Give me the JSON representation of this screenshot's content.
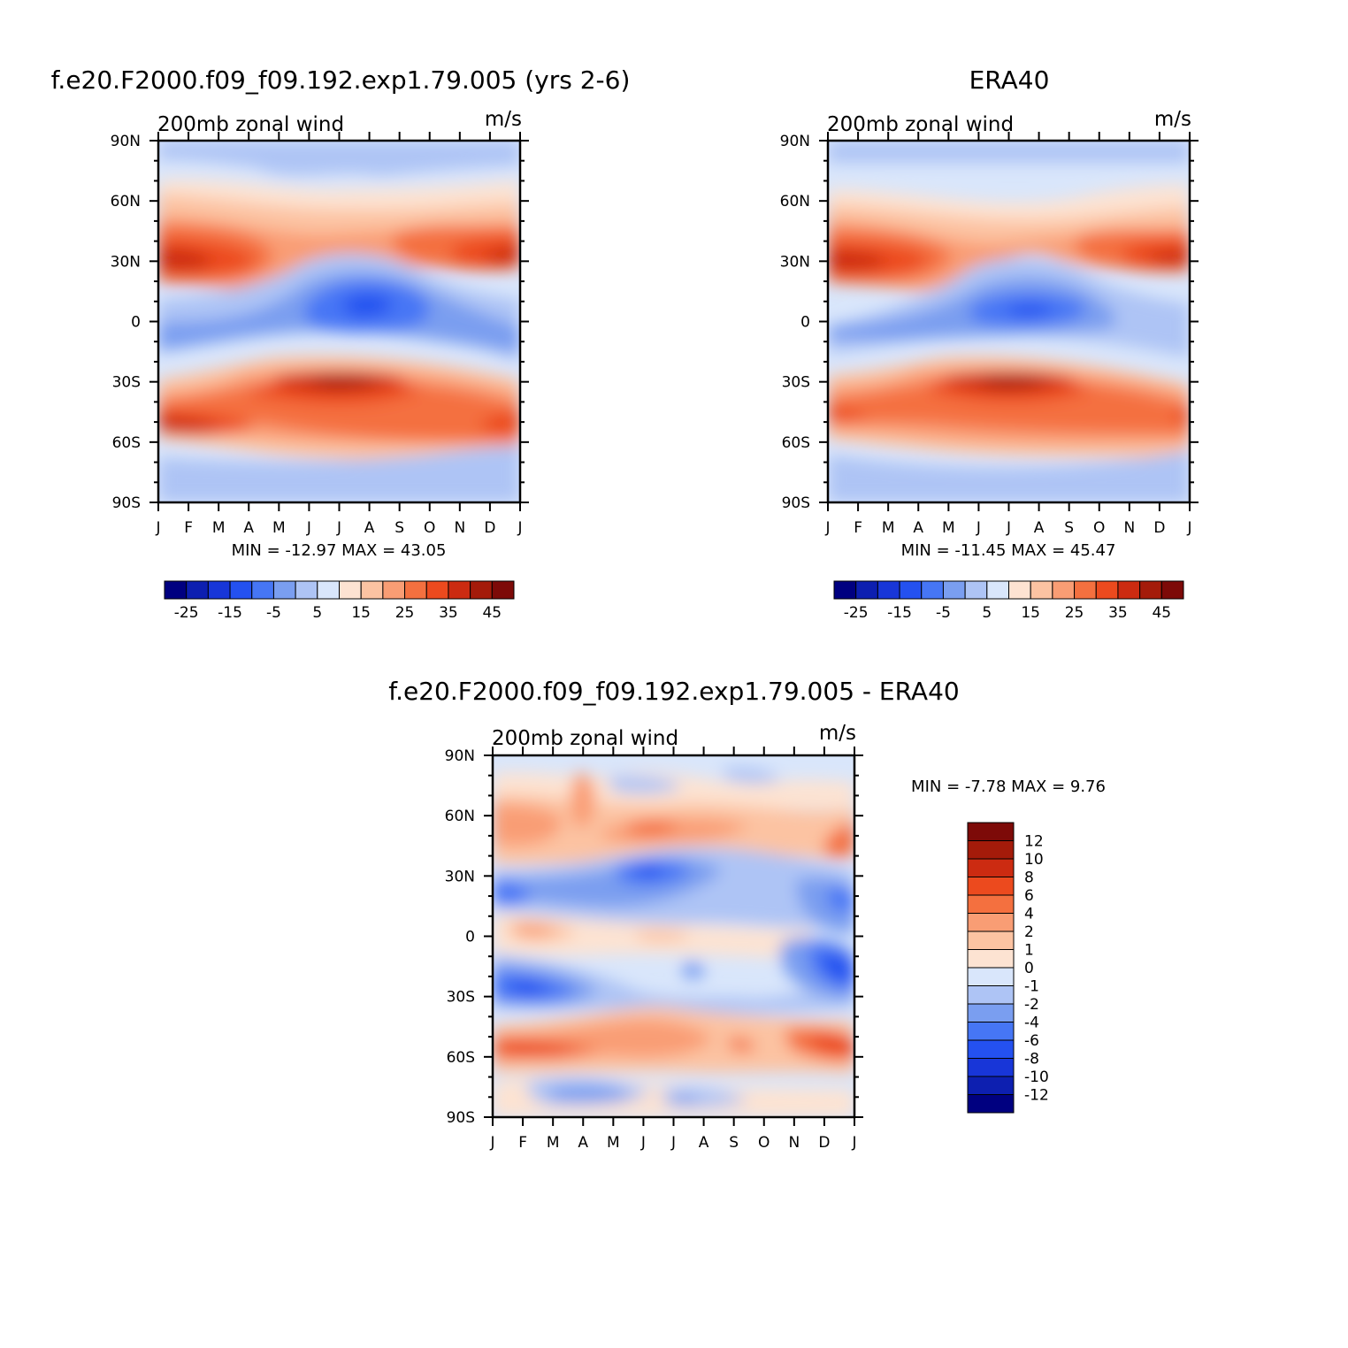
{
  "chart_data": [
    {
      "type": "heatmap",
      "title": "f.e20.F2000.f09_f09.192.exp1.79.005 (yrs 2-6)",
      "left_string": "200mb  zonal  wind",
      "right_string": "m/s",
      "x_tick_labels": [
        "J",
        "F",
        "M",
        "A",
        "M",
        "J",
        "J",
        "A",
        "S",
        "O",
        "N",
        "D",
        "J"
      ],
      "y_tick_labels": [
        "90N",
        "60N",
        "30N",
        "0",
        "30S",
        "60S",
        "90S"
      ],
      "y_values": [
        90,
        60,
        30,
        0,
        -30,
        -60,
        -90
      ],
      "stats_text": "MIN =  -12.97  MAX =    43.05",
      "min": -12.97,
      "max": 43.05,
      "colorbar": {
        "orientation": "horizontal",
        "labels": [
          "-25",
          "-15",
          "-5",
          "5",
          "15",
          "25",
          "35",
          "45"
        ]
      }
    },
    {
      "type": "heatmap",
      "title": "ERA40",
      "left_string": "200mb  zonal  wind",
      "right_string": "m/s",
      "x_tick_labels": [
        "J",
        "F",
        "M",
        "A",
        "M",
        "J",
        "J",
        "A",
        "S",
        "O",
        "N",
        "D",
        "J"
      ],
      "y_tick_labels": [
        "90N",
        "60N",
        "30N",
        "0",
        "30S",
        "60S",
        "90S"
      ],
      "y_values": [
        90,
        60,
        30,
        0,
        -30,
        -60,
        -90
      ],
      "stats_text": "MIN =  -11.45  MAX =    45.47",
      "min": -11.45,
      "max": 45.47,
      "colorbar": {
        "orientation": "horizontal",
        "labels": [
          "-25",
          "-15",
          "-5",
          "5",
          "15",
          "25",
          "35",
          "45"
        ]
      }
    },
    {
      "type": "heatmap",
      "title": "f.e20.F2000.f09_f09.192.exp1.79.005 - ERA40",
      "left_string": "200mb  zonal  wind",
      "right_string": "m/s",
      "x_tick_labels": [
        "J",
        "F",
        "M",
        "A",
        "M",
        "J",
        "J",
        "A",
        "S",
        "O",
        "N",
        "D",
        "J"
      ],
      "y_tick_labels": [
        "90N",
        "60N",
        "30N",
        "0",
        "30S",
        "60S",
        "90S"
      ],
      "y_values": [
        90,
        60,
        30,
        0,
        -30,
        -60,
        -90
      ],
      "stats_text": "MIN =    -7.78  MAX =      9.76",
      "min": -7.78,
      "max": 9.76,
      "colorbar": {
        "orientation": "vertical",
        "labels": [
          "12",
          "10",
          "8",
          "6",
          "4",
          "2",
          "1",
          "0",
          "-1",
          "-2",
          "-4",
          "-6",
          "-8",
          "-10",
          "-12"
        ]
      }
    }
  ],
  "palette": [
    "#000080",
    "#0d1fb0",
    "#1836d8",
    "#2451f0",
    "#4676f5",
    "#7a9ef0",
    "#aec4f5",
    "#d9e6fb",
    "#fde3d2",
    "#fcc3a2",
    "#f99d74",
    "#f4703f",
    "#ec4a1e",
    "#cc2b11",
    "#a41b0a",
    "#7d0a08"
  ],
  "colors": {
    "positive_peak": "#a41b0a",
    "negative_peak": "#1836d8"
  }
}
